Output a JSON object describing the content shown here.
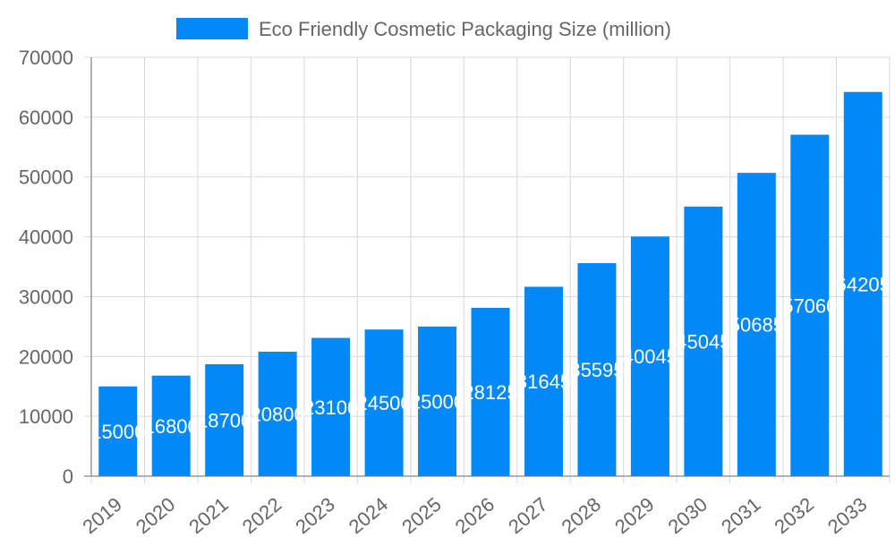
{
  "chart_data": {
    "type": "bar",
    "categories": [
      "2019",
      "2020",
      "2021",
      "2022",
      "2023",
      "2024",
      "2025",
      "2026",
      "2027",
      "2028",
      "2029",
      "2030",
      "2031",
      "2032",
      "2033"
    ],
    "series": [
      {
        "name": "Eco Friendly Cosmetic Packaging Size (million)",
        "values": [
          15000,
          16800,
          18700,
          20800,
          23100,
          24500,
          25000,
          28125,
          31645,
          35595,
          40045,
          45045,
          50685,
          57060,
          64205
        ],
        "color": "#0288f7",
        "data_labels": [
          "15000",
          "16800",
          "18700",
          "20800",
          "23100",
          "24500",
          "25000",
          "28125",
          "31645",
          "35595",
          "40045",
          "45045",
          "50685",
          "57060",
          "64205"
        ]
      }
    ],
    "y_ticks": [
      "0",
      "10000",
      "20000",
      "30000",
      "40000",
      "50000",
      "60000",
      "70000"
    ],
    "ylim": [
      0,
      70000
    ],
    "grid": true,
    "legend_position": "top"
  }
}
